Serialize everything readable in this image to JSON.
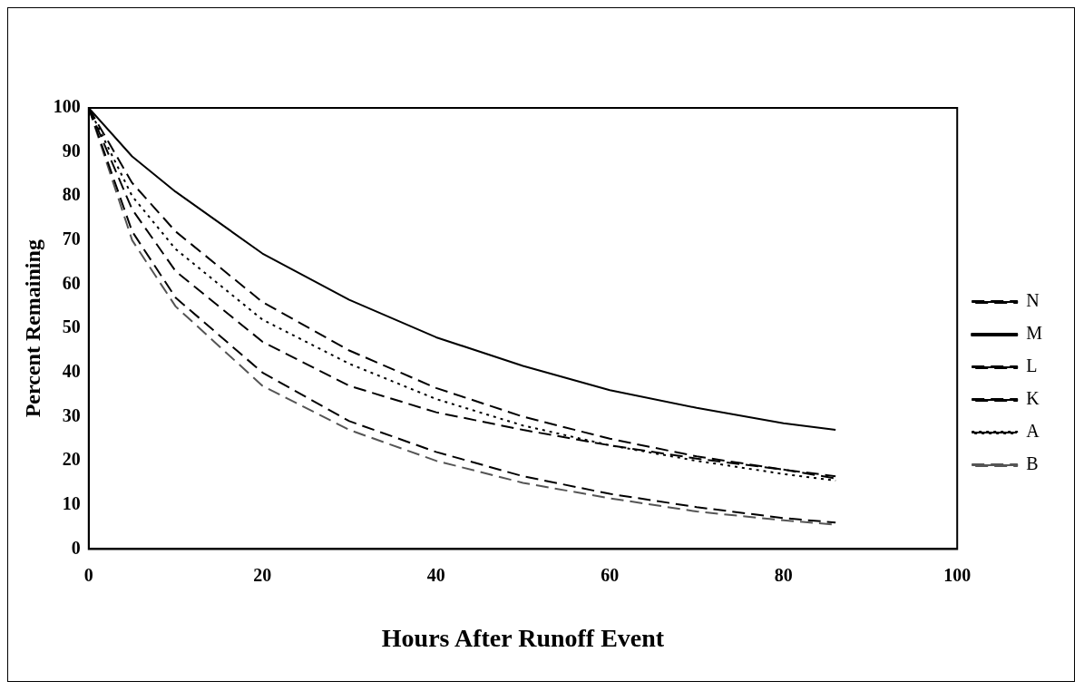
{
  "chart_data": {
    "type": "line",
    "xlabel": "Hours After Runoff Event",
    "ylabel": "Percent Remaining",
    "x": [
      0,
      5,
      10,
      20,
      30,
      40,
      50,
      60,
      70,
      80,
      86
    ],
    "series": [
      {
        "name": "N",
        "color": "#000000",
        "line_style": "dashed",
        "values": [
          100,
          72,
          57,
          40,
          29,
          22,
          16.5,
          12.5,
          9.5,
          7,
          6
        ]
      },
      {
        "name": "M",
        "color": "#000000",
        "line_style": "solid",
        "values": [
          100,
          89,
          81,
          67,
          56.5,
          48,
          41.5,
          36,
          32,
          28.5,
          27
        ]
      },
      {
        "name": "L",
        "color": "#000000",
        "line_style": "dashed",
        "values": [
          100,
          83,
          72,
          56,
          45,
          36.5,
          30,
          25,
          21,
          18,
          16.5
        ]
      },
      {
        "name": "K",
        "color": "#000000",
        "line_style": "dashed",
        "values": [
          100,
          77,
          63,
          47,
          37,
          31,
          27,
          23.5,
          20.5,
          18,
          16
        ]
      },
      {
        "name": "A",
        "color": "#000000",
        "line_style": "dotted",
        "values": [
          100,
          80,
          68,
          52,
          42,
          34,
          28,
          23.5,
          20,
          17,
          15.5
        ]
      },
      {
        "name": "B",
        "color": "#555555",
        "line_style": "dashed",
        "values": [
          100,
          70,
          55,
          37,
          27,
          20,
          15,
          11.5,
          8.5,
          6.5,
          5.5
        ]
      }
    ],
    "xlim": [
      0,
      100
    ],
    "xticks": [
      0,
      20,
      40,
      60,
      80,
      100
    ],
    "ylim": [
      0,
      100
    ],
    "yticks": [
      0,
      10,
      20,
      30,
      40,
      50,
      60,
      70,
      80,
      90,
      100
    ],
    "grid": false,
    "legend": "right",
    "marker": "none"
  }
}
